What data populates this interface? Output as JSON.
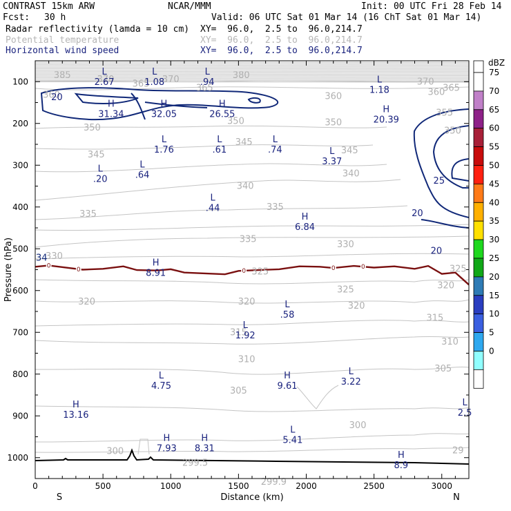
{
  "header": {
    "model": "CONTRAST 15km ARW",
    "center": "NCAR/MMM",
    "init": "Init: 00 UTC Fri 28 Feb 14",
    "fcst_label": "Fcst:",
    "fcst_value": "30 h",
    "valid": "Valid: 06 UTC Sat 01 Mar 14 (16 ChT Sat 01 Mar 14)",
    "fields": [
      {
        "name": "Radar reflectivity (lamda = 10 cm)",
        "xy": "XY=  96.0,  2.5 to  96.0,214.7"
      },
      {
        "name": "Potential temperature",
        "xy": "XY=  96.0,  2.5 to  96.0,214.7"
      },
      {
        "name": "Horizontal wind speed",
        "xy": "XY=  96.0,  2.5 to  96.0,214.7"
      }
    ]
  },
  "chart_data": {
    "type": "cross-section",
    "xlabel": "Distance (km)",
    "ylabel": "Pressure (hPa)",
    "xlim": [
      0,
      3200
    ],
    "ylim": [
      1050,
      50
    ],
    "x_ticks": [
      0,
      500,
      1000,
      1500,
      2000,
      2500,
      3000
    ],
    "y_ticks": [
      100,
      200,
      300,
      400,
      500,
      600,
      700,
      800,
      900,
      1000
    ],
    "left_end": "S",
    "right_end": "N",
    "colorbar": {
      "unit": "dBZ",
      "levels": [
        "0",
        "5",
        "10",
        "15",
        "20",
        "25",
        "30",
        "35",
        "40",
        "45",
        "50",
        "55",
        "60",
        "65",
        "70",
        "75"
      ],
      "colors": [
        "#ffffff",
        "#90ffff",
        "#2ea8ef",
        "#3a5fe0",
        "#2a3ec0",
        "#2e7bb5",
        "#10a818",
        "#1ed81e",
        "#ffe000",
        "#ffb000",
        "#ff7a18",
        "#ff2010",
        "#c80c0c",
        "#a82038",
        "#8e2088",
        "#c080c8",
        "#ffffff"
      ]
    },
    "theta_labels": [
      {
        "text": "385",
        "x": 200,
        "p": 85
      },
      {
        "text": "370",
        "x": 520,
        "p": 95
      },
      {
        "text": "365",
        "x": 780,
        "p": 105
      },
      {
        "text": "370",
        "x": 1000,
        "p": 95
      },
      {
        "text": "365",
        "x": 1250,
        "p": 115
      },
      {
        "text": "380",
        "x": 1520,
        "p": 85
      },
      {
        "text": "360",
        "x": 2960,
        "p": 125
      },
      {
        "text": "370",
        "x": 2880,
        "p": 100
      },
      {
        "text": "365",
        "x": 3070,
        "p": 115
      },
      {
        "text": "360",
        "x": 2200,
        "p": 135
      },
      {
        "text": "360",
        "x": 120,
        "p": 132
      },
      {
        "text": "350",
        "x": 1480,
        "p": 195
      },
      {
        "text": "355",
        "x": 3020,
        "p": 175
      },
      {
        "text": "350",
        "x": 420,
        "p": 210
      },
      {
        "text": "350",
        "x": 2200,
        "p": 198
      },
      {
        "text": "350",
        "x": 3080,
        "p": 218
      },
      {
        "text": "345",
        "x": 450,
        "p": 275
      },
      {
        "text": "345",
        "x": 1540,
        "p": 245
      },
      {
        "text": "345",
        "x": 2320,
        "p": 265
      },
      {
        "text": "340",
        "x": 1550,
        "p": 350
      },
      {
        "text": "340",
        "x": 2330,
        "p": 320
      },
      {
        "text": "335",
        "x": 390,
        "p": 417
      },
      {
        "text": "335",
        "x": 1770,
        "p": 400
      },
      {
        "text": "335",
        "x": 1570,
        "p": 477
      },
      {
        "text": "330",
        "x": 140,
        "p": 518
      },
      {
        "text": "330",
        "x": 2290,
        "p": 490
      },
      {
        "text": "325",
        "x": 1660,
        "p": 555
      },
      {
        "text": "325",
        "x": 2290,
        "p": 598
      },
      {
        "text": "325",
        "x": 3120,
        "p": 548
      },
      {
        "text": "320",
        "x": 380,
        "p": 627
      },
      {
        "text": "320",
        "x": 1560,
        "p": 627
      },
      {
        "text": "320",
        "x": 2370,
        "p": 637
      },
      {
        "text": "320",
        "x": 3030,
        "p": 588
      },
      {
        "text": "315",
        "x": 1500,
        "p": 700
      },
      {
        "text": "315",
        "x": 2950,
        "p": 666
      },
      {
        "text": "310",
        "x": 1560,
        "p": 765
      },
      {
        "text": "310",
        "x": 3060,
        "p": 723
      },
      {
        "text": "305",
        "x": 1500,
        "p": 840
      },
      {
        "text": "305",
        "x": 3010,
        "p": 787
      },
      {
        "text": "300",
        "x": 590,
        "p": 985
      },
      {
        "text": "300",
        "x": 2380,
        "p": 923
      },
      {
        "text": "299.5",
        "x": 1180,
        "p": 1013
      },
      {
        "text": "299.9",
        "x": 1760,
        "p": 1058
      },
      {
        "text": "29",
        "x": 3120,
        "p": 983
      }
    ],
    "wind_extrema": [
      {
        "type": "L",
        "value": "2.67",
        "x": 510,
        "p": 88
      },
      {
        "type": "L",
        "value": "1.08",
        "x": 880,
        "p": 88
      },
      {
        "type": "L",
        "value": ".94",
        "x": 1270,
        "p": 88
      },
      {
        "type": "L",
        "value": "1.18",
        "x": 2540,
        "p": 107
      },
      {
        "type": "H",
        "value": "31.34",
        "x": 560,
        "p": 165
      },
      {
        "type": "H",
        "value": "32.05",
        "x": 950,
        "p": 165
      },
      {
        "type": "H",
        "value": "26.55",
        "x": 1380,
        "p": 165
      },
      {
        "type": "H",
        "value": "20.39",
        "x": 2590,
        "p": 178
      },
      {
        "type": "L",
        "value": "1.76",
        "x": 950,
        "p": 250
      },
      {
        "type": "L",
        "value": ".61",
        "x": 1360,
        "p": 250
      },
      {
        "type": "L",
        "value": ".74",
        "x": 1770,
        "p": 250
      },
      {
        "type": "L",
        "value": "3.37",
        "x": 2190,
        "p": 278
      },
      {
        "type": "L",
        "value": ".20",
        "x": 480,
        "p": 320
      },
      {
        "type": "L",
        "value": ".64",
        "x": 790,
        "p": 310
      },
      {
        "type": "L",
        "value": ".44",
        "x": 1310,
        "p": 390
      },
      {
        "type": "H",
        "value": "6.84",
        "x": 1990,
        "p": 435
      },
      {
        "type": "H",
        "value": "8.91",
        "x": 890,
        "p": 545
      },
      {
        "type": "L",
        "value": ".58",
        "x": 1860,
        "p": 645
      },
      {
        "type": "L",
        "value": "1.92",
        "x": 1550,
        "p": 695
      },
      {
        "type": "L",
        "value": "3.22",
        "x": 2330,
        "p": 805
      },
      {
        "type": "L",
        "value": "4.75",
        "x": 930,
        "p": 815
      },
      {
        "type": "H",
        "value": "9.61",
        "x": 1860,
        "p": 815
      },
      {
        "type": "L",
        "value": "2.5",
        "x": 3170,
        "p": 880
      },
      {
        "type": "H",
        "value": "13.16",
        "x": 300,
        "p": 885
      },
      {
        "type": "L",
        "value": "5.41",
        "x": 1900,
        "p": 945
      },
      {
        "type": "H",
        "value": "7.93",
        "x": 970,
        "p": 965
      },
      {
        "type": "H",
        "value": "8.31",
        "x": 1250,
        "p": 965
      },
      {
        "type": "H",
        "value": "8.9",
        "x": 2700,
        "p": 1005
      }
    ],
    "wind_contour_labels": [
      {
        "text": "20",
        "x": 160,
        "p": 138
      },
      {
        "text": "25",
        "x": 2980,
        "p": 338
      },
      {
        "text": "20",
        "x": 2820,
        "p": 415
      },
      {
        "text": "20",
        "x": 2960,
        "p": 505
      }
    ],
    "reflectivity_contour": {
      "level": "0",
      "x": [
        0,
        100,
        250,
        350,
        500,
        650,
        750,
        900,
        1000,
        1100,
        1250,
        1400,
        1500,
        1650,
        1800,
        1950,
        2100,
        2200,
        2350,
        2500,
        2650,
        2800,
        2900,
        3000,
        3100,
        3200
      ],
      "p": [
        543,
        540,
        546,
        550,
        548,
        542,
        551,
        552,
        549,
        557,
        559,
        561,
        553,
        551,
        549,
        542,
        543,
        546,
        541,
        545,
        542,
        548,
        541,
        560,
        557,
        586
      ]
    },
    "zero_labels": [
      {
        "text": "0",
        "x": 100
      },
      {
        "text": "0",
        "x": 320
      },
      {
        "text": "0",
        "x": 1540
      },
      {
        "text": "0",
        "x": 2200
      },
      {
        "text": "0",
        "x": 2420
      }
    ],
    "left_edge_label": "34"
  }
}
